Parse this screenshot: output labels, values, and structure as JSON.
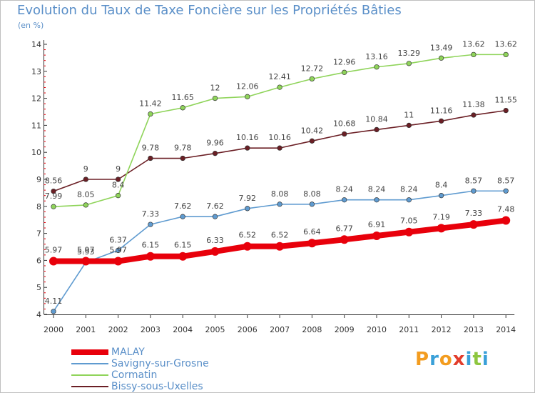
{
  "title": "Evolution du Taux de Taxe Foncière sur les Propriétés Bâties",
  "unit": "(en %)",
  "logo": {
    "letters": [
      "P",
      "r",
      "o",
      "x",
      "i",
      "t",
      "i"
    ],
    "colors": [
      "#f39c1f",
      "#3aa0d8",
      "#f39c1f",
      "#e23c2b",
      "#3aa0d8",
      "#8dc63f",
      "#3aa0d8"
    ]
  },
  "chart_data": {
    "type": "line",
    "x": [
      "2000",
      "2001",
      "2002",
      "2003",
      "2004",
      "2005",
      "2006",
      "2007",
      "2008",
      "2009",
      "2010",
      "2011",
      "2012",
      "2013",
      "2014"
    ],
    "ylim": [
      4,
      14
    ],
    "yticks": [
      "4",
      "5",
      "6",
      "7",
      "8",
      "9",
      "10",
      "11",
      "12",
      "13",
      "14"
    ],
    "grid": false,
    "legend": "bottom-left",
    "series": [
      {
        "name": "Bissy-sous-Uxelles",
        "color": "#6b1f25",
        "values": [
          8.56,
          9,
          9,
          9.78,
          9.78,
          9.96,
          10.16,
          10.16,
          10.42,
          10.68,
          10.84,
          11,
          11.16,
          11.38,
          11.55
        ],
        "labels": [
          "8.56",
          "9",
          "9",
          "9.78",
          "9.78",
          "9.96",
          "10.16",
          "10.16",
          "10.42",
          "10.68",
          "10.84",
          "11",
          "11.16",
          "11.38",
          "11.55"
        ]
      },
      {
        "name": "Cormatin",
        "color": "#8fd45a",
        "values": [
          7.99,
          8.05,
          8.4,
          11.42,
          11.65,
          12,
          12.06,
          12.41,
          12.72,
          12.96,
          13.16,
          13.29,
          13.49,
          13.62,
          13.62
        ],
        "labels": [
          "7.99",
          "8.05",
          "8.4",
          "11.42",
          "11.65",
          "12",
          "12.06",
          "12.41",
          "12.72",
          "12.96",
          "13.16",
          "13.29",
          "13.49",
          "13.62",
          "13.62"
        ]
      },
      {
        "name": "Savigny-sur-Grosne",
        "color": "#5f9bd0",
        "values": [
          4.11,
          5.93,
          6.37,
          7.33,
          7.62,
          7.62,
          7.92,
          8.08,
          8.08,
          8.24,
          8.24,
          8.24,
          8.4,
          8.57,
          8.57
        ],
        "labels": [
          "4.11",
          "5.93",
          "6.37",
          "7.33",
          "7.62",
          "7.62",
          "7.92",
          "8.08",
          "8.08",
          "8.24",
          "8.24",
          "8.24",
          "8.4",
          "8.57",
          "8.57"
        ]
      },
      {
        "name": "MALAY",
        "color": "#e8000b",
        "values": [
          5.97,
          5.97,
          5.97,
          6.15,
          6.15,
          6.33,
          6.52,
          6.52,
          6.64,
          6.77,
          6.91,
          7.05,
          7.19,
          7.33,
          7.48
        ],
        "labels": [
          "5.97",
          "5.97",
          "5.97",
          "6.15",
          "6.15",
          "6.33",
          "6.52",
          "6.52",
          "6.64",
          "6.77",
          "6.91",
          "7.05",
          "7.19",
          "7.33",
          "7.48"
        ]
      }
    ],
    "legend_order": [
      "MALAY",
      "Savigny-sur-Grosne",
      "Cormatin",
      "Bissy-sous-Uxelles"
    ]
  }
}
